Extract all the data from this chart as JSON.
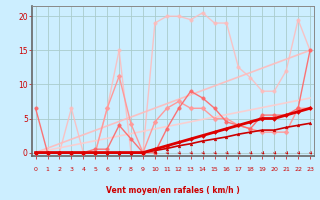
{
  "bg_color": "#cceeff",
  "grid_color": "#aacccc",
  "xlabel": "Vent moyen/en rafales ( km/h )",
  "x_ticks": [
    0,
    1,
    2,
    3,
    4,
    5,
    6,
    7,
    8,
    9,
    10,
    11,
    12,
    13,
    14,
    15,
    16,
    17,
    18,
    19,
    20,
    21,
    22,
    23
  ],
  "ylim": [
    -0.5,
    21.5
  ],
  "xlim": [
    -0.3,
    23.3
  ],
  "yticks": [
    0,
    5,
    10,
    15,
    20
  ],
  "lines": [
    {
      "x": [
        0,
        1,
        2,
        3,
        4,
        5,
        6,
        7,
        8,
        9,
        10,
        11,
        12,
        13,
        14,
        15,
        16,
        17,
        18,
        19,
        20,
        21,
        22,
        23
      ],
      "y": [
        0,
        0,
        0,
        0,
        0,
        0,
        6.5,
        11.2,
        4.2,
        0,
        4.5,
        6.5,
        7.5,
        6.5,
        6.5,
        5.0,
        5.0,
        4.0,
        3.5,
        3.0,
        3.0,
        3.0,
        6.5,
        6.5
      ],
      "color": "#ff9999",
      "lw": 1.0,
      "marker": "D",
      "ms": 2.5,
      "alpha": 1.0,
      "zorder": 3
    },
    {
      "x": [
        0,
        1,
        2,
        3,
        4,
        5,
        6,
        7,
        8,
        9,
        10,
        11,
        12,
        13,
        14,
        15,
        16,
        17,
        18,
        19,
        20,
        21,
        22,
        23
      ],
      "y": [
        0,
        0,
        0,
        6.5,
        0,
        0,
        6.5,
        15.0,
        0,
        0,
        19.0,
        20.0,
        20.0,
        19.5,
        20.5,
        19.0,
        19.0,
        12.5,
        11.0,
        9.0,
        9.0,
        12.0,
        19.5,
        15.0
      ],
      "color": "#ffbbbb",
      "lw": 1.0,
      "marker": "o",
      "ms": 2.5,
      "alpha": 0.85,
      "zorder": 2
    },
    {
      "x": [
        0,
        23
      ],
      "y": [
        0,
        15
      ],
      "color": "#ffbbbb",
      "lw": 1.2,
      "marker": null,
      "ms": 0,
      "alpha": 0.9,
      "zorder": 2
    },
    {
      "x": [
        0,
        23
      ],
      "y": [
        0,
        8
      ],
      "color": "#ffcccc",
      "lw": 1.2,
      "marker": null,
      "ms": 0,
      "alpha": 0.9,
      "zorder": 2
    },
    {
      "x": [
        0,
        1,
        2,
        3,
        4,
        5,
        6,
        7,
        8,
        9,
        10,
        11,
        12,
        13,
        14,
        15,
        16,
        17,
        18,
        19,
        20,
        21,
        22,
        23
      ],
      "y": [
        6.5,
        0,
        0,
        0,
        0,
        0.5,
        0.5,
        4.0,
        2.0,
        0,
        0,
        3.5,
        6.5,
        9.0,
        8.0,
        6.5,
        4.5,
        4.0,
        3.5,
        5.5,
        5.5,
        5.5,
        6.5,
        15.0
      ],
      "color": "#ff6666",
      "lw": 1.0,
      "marker": "o",
      "ms": 2.5,
      "alpha": 0.9,
      "zorder": 3
    },
    {
      "x": [
        0,
        1,
        2,
        3,
        4,
        5,
        6,
        7,
        8,
        9,
        10,
        11,
        12,
        13,
        14,
        15,
        16,
        17,
        18,
        19,
        20,
        21,
        22,
        23
      ],
      "y": [
        0,
        0,
        0,
        0,
        0,
        0,
        0,
        0,
        0,
        0,
        0.5,
        1.0,
        1.5,
        2.0,
        2.5,
        3.0,
        3.5,
        4.0,
        4.5,
        5.0,
        5.0,
        5.5,
        6.0,
        6.5
      ],
      "color": "#dd0000",
      "lw": 2.0,
      "marker": "D",
      "ms": 2.0,
      "alpha": 1.0,
      "zorder": 5
    },
    {
      "x": [
        0,
        1,
        2,
        3,
        4,
        5,
        6,
        7,
        8,
        9,
        10,
        11,
        12,
        13,
        14,
        15,
        16,
        17,
        18,
        19,
        20,
        21,
        22,
        23
      ],
      "y": [
        0,
        0,
        0,
        0,
        0,
        0,
        0,
        0,
        0,
        0,
        0.3,
        0.6,
        1.0,
        1.3,
        1.7,
        2.0,
        2.3,
        2.7,
        3.0,
        3.3,
        3.3,
        3.7,
        4.0,
        4.3
      ],
      "color": "#cc0000",
      "lw": 1.2,
      "marker": "^",
      "ms": 2.0,
      "alpha": 1.0,
      "zorder": 4
    }
  ],
  "arrow_color": "#cc0000",
  "tick_color": "#cc0000",
  "label_color": "#cc0000",
  "spine_color": "#888888"
}
